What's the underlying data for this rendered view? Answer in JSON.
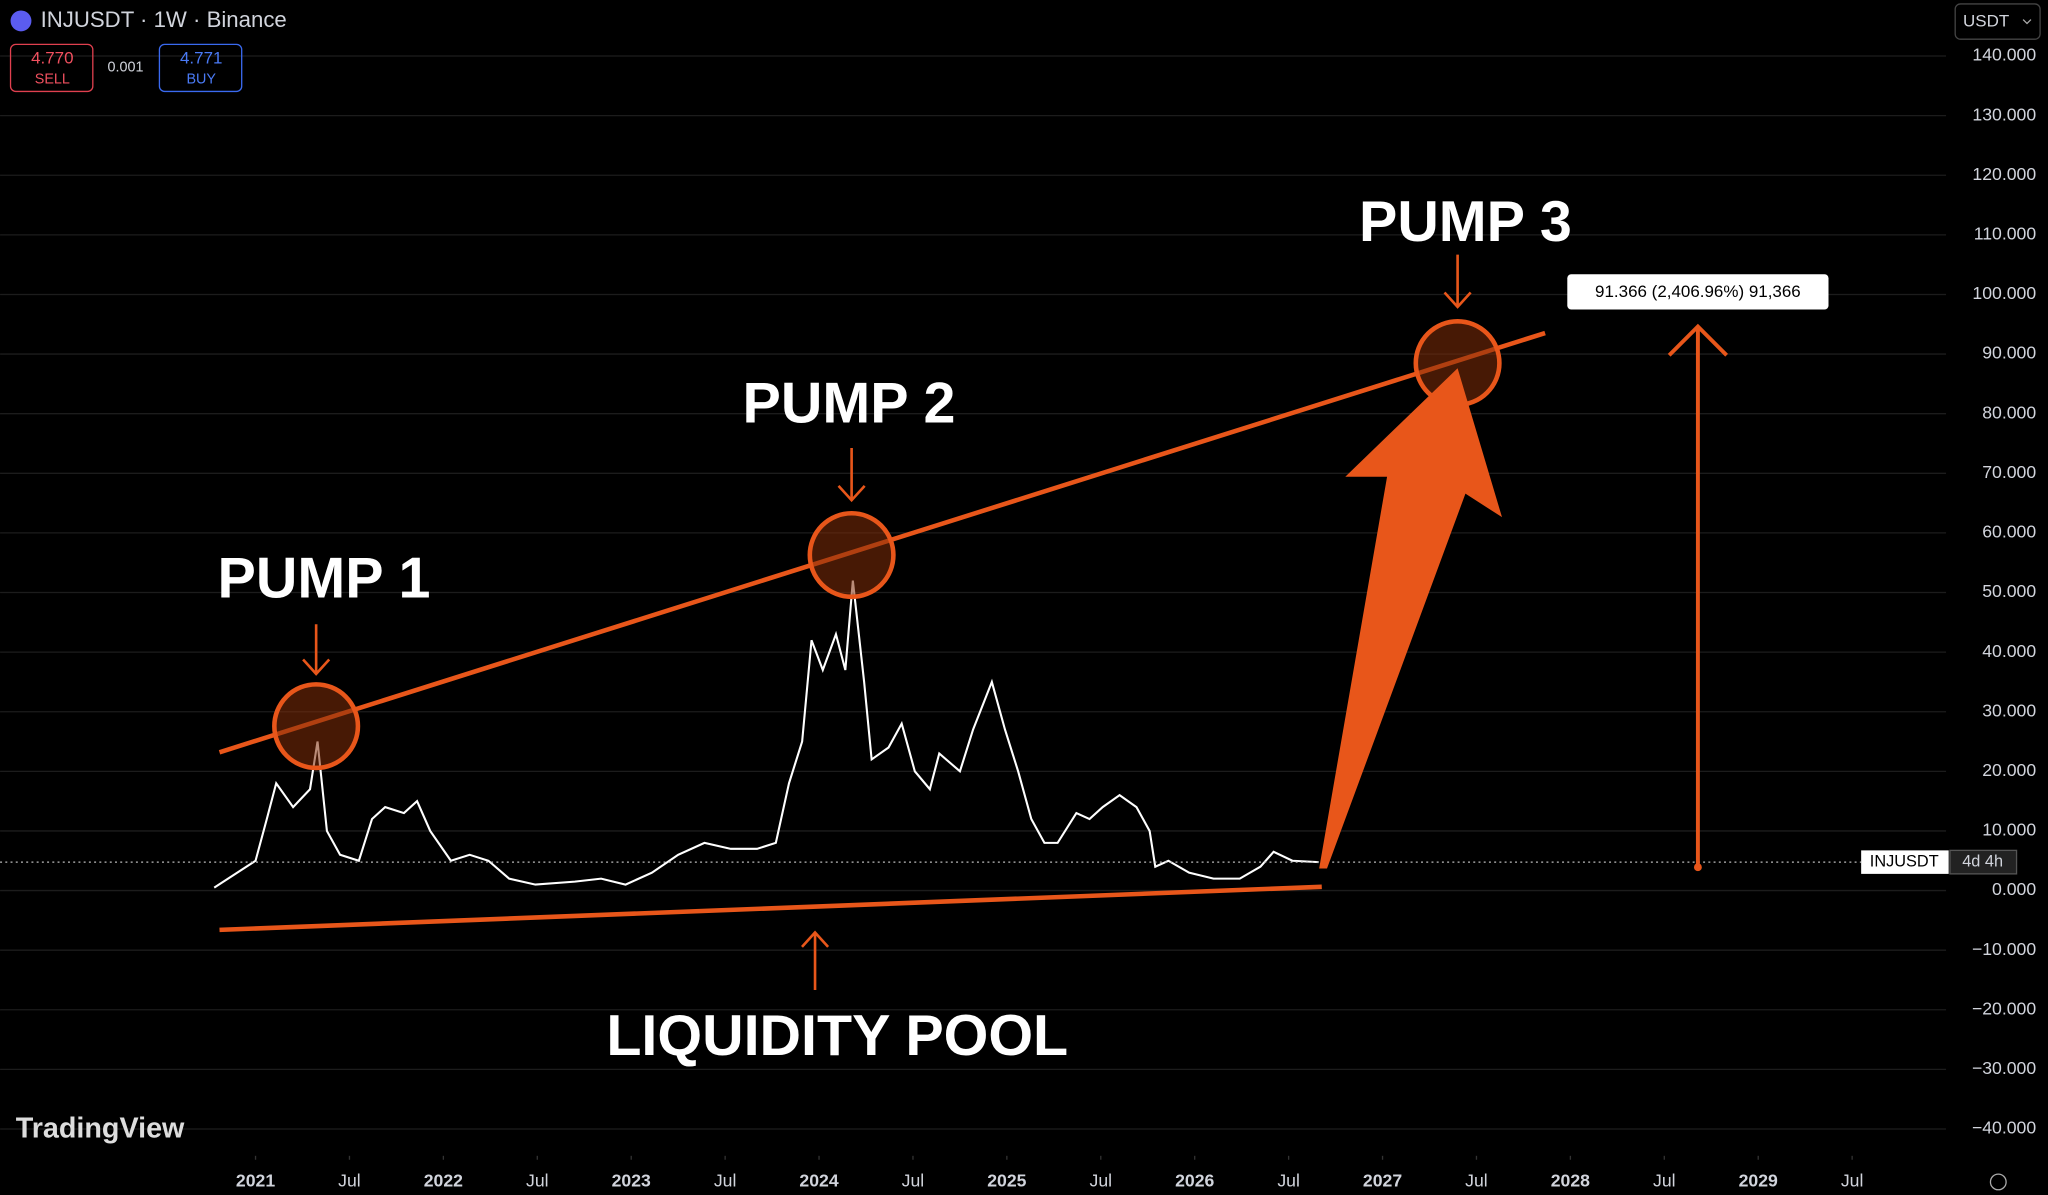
{
  "header": {
    "symbol": "INJUSDT · 1W · Binance",
    "currency": "USDT",
    "sell_price": "4.770",
    "sell_label": "SELL",
    "spread": "0.001",
    "buy_price": "4.771",
    "buy_label": "BUY",
    "watermark": "TradingView"
  },
  "chart_data": {
    "type": "line",
    "x": [
      2020.78,
      2021.0,
      2021.06,
      2021.11,
      2021.2,
      2021.29,
      2021.33,
      2021.38,
      2021.45,
      2021.55,
      2021.62,
      2021.69,
      2021.79,
      2021.86,
      2021.93,
      2022.04,
      2022.14,
      2022.24,
      2022.35,
      2022.49,
      2022.7,
      2022.84,
      2022.97,
      2023.11,
      2023.25,
      2023.39,
      2023.53,
      2023.67,
      2023.77,
      2023.84,
      2023.91,
      2023.96,
      2024.02,
      2024.09,
      2024.14,
      2024.18,
      2024.24,
      2024.28,
      2024.37,
      2024.44,
      2024.51,
      2024.59,
      2024.64,
      2024.75,
      2024.82,
      2024.92,
      2024.99,
      2025.06,
      2025.13,
      2025.2,
      2025.27,
      2025.37,
      2025.44,
      2025.51,
      2025.6,
      2025.69,
      2025.76,
      2025.79,
      2025.86,
      2025.97,
      2026.1,
      2026.24,
      2026.35,
      2026.42,
      2026.52,
      2026.66
    ],
    "series": [
      {
        "name": "INJUSDT",
        "color": "#ffffff",
        "values": [
          0.5,
          5,
          12,
          18,
          14,
          17,
          25,
          10,
          6,
          5,
          12,
          14,
          13,
          15,
          10,
          5,
          6,
          5,
          2,
          1,
          1.5,
          2,
          1,
          3,
          6,
          8,
          7,
          7,
          8,
          18,
          25,
          42,
          37,
          43,
          37,
          52,
          35,
          22,
          24,
          28,
          20,
          17,
          23,
          20,
          27,
          35,
          27,
          20,
          12,
          8,
          8,
          13,
          12,
          14,
          16,
          14,
          10,
          4,
          5,
          3,
          2,
          2,
          4,
          6.5,
          5,
          4.77
        ]
      }
    ],
    "last_price": 4.77,
    "price_tag": "INJUSDT",
    "countdown": "4d 4h",
    "xlim": [
      2019.64,
      2030.0
    ],
    "xticks": [
      {
        "value": 2021,
        "label": "2021"
      },
      {
        "value": 2021.5,
        "label": "Jul"
      },
      {
        "value": 2022,
        "label": "2022"
      },
      {
        "value": 2022.5,
        "label": "Jul"
      },
      {
        "value": 2023,
        "label": "2023"
      },
      {
        "value": 2023.5,
        "label": "Jul"
      },
      {
        "value": 2024,
        "label": "2024"
      },
      {
        "value": 2024.5,
        "label": "Jul"
      },
      {
        "value": 2025,
        "label": "2025"
      },
      {
        "value": 2025.5,
        "label": "Jul"
      },
      {
        "value": 2026,
        "label": "2026"
      },
      {
        "value": 2026.5,
        "label": "Jul"
      },
      {
        "value": 2027,
        "label": "2027"
      },
      {
        "value": 2027.5,
        "label": "Jul"
      },
      {
        "value": 2028,
        "label": "2028"
      },
      {
        "value": 2028.5,
        "label": "Jul"
      },
      {
        "value": 2029,
        "label": "2029"
      },
      {
        "value": 2029.5,
        "label": "Jul"
      }
    ],
    "ylim": [
      -44.5,
      149.4
    ],
    "yticks": [
      {
        "value": -40,
        "label": "−40.000"
      },
      {
        "value": -30,
        "label": "−30.000"
      },
      {
        "value": -20,
        "label": "−20.000"
      },
      {
        "value": -10,
        "label": "−10.000"
      },
      {
        "value": 0,
        "label": "0.000"
      },
      {
        "value": 10,
        "label": "10.000"
      },
      {
        "value": 20,
        "label": "20.000"
      },
      {
        "value": 30,
        "label": "30.000"
      },
      {
        "value": 40,
        "label": "40.000"
      },
      {
        "value": 50,
        "label": "50.000"
      },
      {
        "value": 60,
        "label": "60.000"
      },
      {
        "value": 70,
        "label": "70.000"
      },
      {
        "value": 80,
        "label": "80.000"
      },
      {
        "value": 90,
        "label": "90.000"
      },
      {
        "value": 100,
        "label": "100.000"
      },
      {
        "value": 110,
        "label": "110.000"
      },
      {
        "value": 120,
        "label": "120.000"
      },
      {
        "value": 130,
        "label": "130.000"
      },
      {
        "value": 140,
        "label": "140.000"
      }
    ],
    "grid": true
  },
  "annotations": {
    "pump1": "PUMP 1",
    "pump2": "PUMP 2",
    "pump3": "PUMP 3",
    "liquidity": "LIQUIDITY POOL",
    "measure": "91.366 (2,406.96%) 91,366"
  }
}
